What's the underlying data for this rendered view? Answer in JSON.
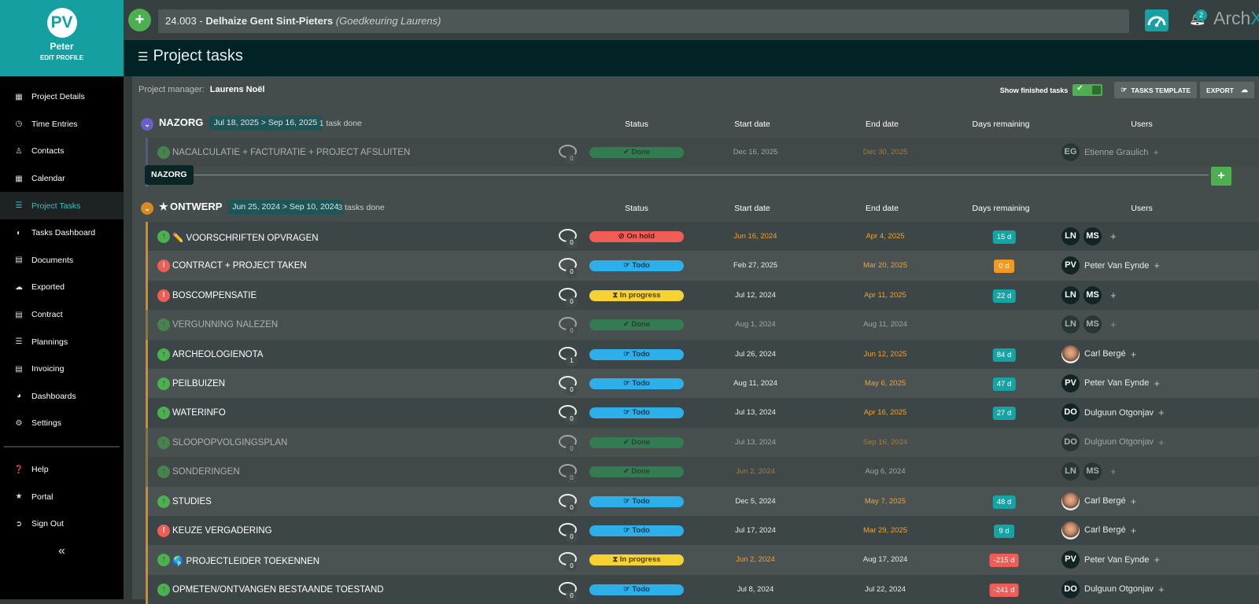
{
  "sidebar": {
    "avatar_initials": "PV",
    "name": "Peter",
    "edit_profile": "EDIT PROFILE",
    "items": [
      {
        "label": "Project Details",
        "icon": "map-icon"
      },
      {
        "label": "Time Entries",
        "icon": "clock-icon"
      },
      {
        "label": "Contacts",
        "icon": "user-icon"
      },
      {
        "label": "Calendar",
        "icon": "calendar-icon"
      },
      {
        "label": "Project Tasks",
        "icon": "list-icon",
        "active": true
      },
      {
        "label": "Tasks Dashboard",
        "icon": "dashboard-icon"
      },
      {
        "label": "Documents",
        "icon": "folder-icon"
      },
      {
        "label": "Exported",
        "icon": "cloud-icon"
      },
      {
        "label": "Contract",
        "icon": "book-icon"
      },
      {
        "label": "Plannings",
        "icon": "plannings-icon"
      },
      {
        "label": "Invoicing",
        "icon": "bank-icon"
      },
      {
        "label": "Dashboards",
        "icon": "pie-chart-icon"
      },
      {
        "label": "Settings",
        "icon": "gear-icon"
      }
    ],
    "bottom_items": [
      {
        "label": "Help",
        "icon": "help-icon"
      },
      {
        "label": "Portal",
        "icon": "sitemap-icon"
      },
      {
        "label": "Sign Out",
        "icon": "sign-out-icon"
      }
    ],
    "collapse": "«"
  },
  "topbar": {
    "add_label": "+",
    "project_code": "24.003",
    "project_sep": " - ",
    "project_name": "Delhaize Gent Sint-Pieters",
    "project_status": "(Goedkeuring Laurens)",
    "notification_count": "2",
    "brand": "Arch",
    "brand_accent": "X"
  },
  "page_title": "Project tasks",
  "project_manager": {
    "label": "Project manager:",
    "name": "Laurens Noël"
  },
  "toolbar": {
    "show_finished_label": "Show finished tasks",
    "show_finished": true,
    "template_label": "TASKS TEMPLATE",
    "export_label": "EXPORT"
  },
  "columns": {
    "status": "Status",
    "start": "Start date",
    "end": "End date",
    "days": "Days remaining",
    "users": "Users"
  },
  "groups": [
    {
      "name": "NAZORG",
      "starred": false,
      "range": "Jul 18, 2025 > Sep 16, 2025",
      "done_text": "1 task done",
      "color": "#6a5fc7",
      "tooltip": "NAZORG",
      "tasks": [
        {
          "name": "NACALCULATIE + FACTURATIE + PROJECT AFSLUITEN",
          "comments": "0",
          "status": "Done",
          "start": "Dec 16, 2025",
          "end": "Dec 30, 2025",
          "end_warn": true,
          "days": "",
          "users": [
            {
              "initials": "EG"
            }
          ],
          "user_name": "Etienne Graulich",
          "finished": true
        }
      ]
    },
    {
      "name": "ONTWERP",
      "starred": true,
      "range": "Jun 25, 2024 > Sep 10, 2024",
      "done_text": "3 tasks done",
      "color": "#d88a1e",
      "tasks": [
        {
          "name": "VOORSCHRIFTEN OPVRAGEN",
          "emoji": "✏️",
          "priority": "up",
          "comments": "0",
          "status": "On hold",
          "start": "Jun 16, 2024",
          "start_warn": true,
          "end": "Apr 4, 2025",
          "end_warn": true,
          "days": "15 d",
          "days_kind": "ok",
          "users": [
            {
              "initials": "LN"
            },
            {
              "initials": "MS"
            }
          ],
          "user_name": ""
        },
        {
          "name": "CONTRACT + PROJECT TAKEN",
          "priority": "high",
          "comments": "0",
          "status": "Todo",
          "start": "Feb 27, 2025",
          "end": "Mar 20, 2025",
          "end_warn": true,
          "days": "0 d",
          "days_kind": "warn",
          "users": [
            {
              "initials": "PV"
            }
          ],
          "user_name": "Peter Van Eynde"
        },
        {
          "name": "BOSCOMPENSATIE",
          "priority": "high",
          "comments": "0",
          "status": "In progress",
          "start": "Jul 12, 2024",
          "end": "Apr 11, 2025",
          "end_warn": true,
          "days": "22 d",
          "days_kind": "ok",
          "users": [
            {
              "initials": "LN"
            },
            {
              "initials": "MS"
            }
          ],
          "user_name": ""
        },
        {
          "name": "VERGUNNING NALEZEN",
          "priority": "up",
          "comments": "0",
          "status": "Done",
          "start": "Aug 1, 2024",
          "end": "Aug 11, 2024",
          "days": "",
          "users": [
            {
              "initials": "LN"
            },
            {
              "initials": "MS"
            }
          ],
          "user_name": "",
          "finished": true
        },
        {
          "name": "ARCHEOLOGIENOTA",
          "priority": "up",
          "comments": "1",
          "status": "Todo",
          "start": "Jul 26, 2024",
          "end": "Jun 12, 2025",
          "end_warn": true,
          "days": "84 d",
          "days_kind": "ok",
          "users": [
            {
              "initials": "",
              "photo": true
            }
          ],
          "user_name": "Carl Bergé"
        },
        {
          "name": "PEILBUIZEN",
          "priority": "up",
          "comments": "0",
          "status": "Todo",
          "start": "Aug 11, 2024",
          "end": "May 6, 2025",
          "end_warn": true,
          "days": "47 d",
          "days_kind": "ok",
          "users": [
            {
              "initials": "PV"
            }
          ],
          "user_name": "Peter Van Eynde"
        },
        {
          "name": "WATERINFO",
          "priority": "up",
          "comments": "0",
          "status": "Todo",
          "start": "Jul 13, 2024",
          "end": "Apr 16, 2025",
          "end_warn": true,
          "days": "27 d",
          "days_kind": "ok",
          "users": [
            {
              "initials": "DO"
            }
          ],
          "user_name": "Dulguun Otgonjav"
        },
        {
          "name": "SLOOPOPVOLGINGSPLAN",
          "priority": "up",
          "comments": "0",
          "status": "Done",
          "start": "Jul 13, 2024",
          "end": "Sep 16, 2024",
          "end_warn": true,
          "days": "",
          "users": [
            {
              "initials": "DO"
            }
          ],
          "user_name": "Dulguun Otgonjav",
          "finished": true
        },
        {
          "name": "SONDERINGEN",
          "priority": "up",
          "comments": "0",
          "status": "Done",
          "start": "Jun 2, 2024",
          "start_warn": true,
          "end": "Aug 6, 2024",
          "days": "",
          "users": [
            {
              "initials": "LN"
            },
            {
              "initials": "MS"
            }
          ],
          "user_name": "",
          "finished": true
        },
        {
          "name": "STUDIES",
          "priority": "up",
          "comments": "0",
          "status": "Todo",
          "start": "Dec 5, 2024",
          "end": "May 7, 2025",
          "end_warn": true,
          "days": "48 d",
          "days_kind": "ok",
          "users": [
            {
              "initials": "",
              "photo": true
            }
          ],
          "user_name": "Carl Bergé"
        },
        {
          "name": "KEUZE VERGADERING",
          "priority": "high",
          "comments": "0",
          "status": "Todo",
          "start": "Jul 17, 2024",
          "end": "Mar 29, 2025",
          "end_warn": true,
          "days": "9 d",
          "days_kind": "ok",
          "users": [
            {
              "initials": "",
              "photo": true
            }
          ],
          "user_name": "Carl Bergé"
        },
        {
          "name": "PROJECTLEIDER TOEKENNEN",
          "emoji": "🌎",
          "priority": "up",
          "comments": "0",
          "status": "In progress",
          "start": "Jun 2, 2024",
          "start_warn": true,
          "end": "Aug 17, 2024",
          "days": "-215 d",
          "days_kind": "over",
          "users": [
            {
              "initials": "PV"
            }
          ],
          "user_name": "Peter Van Eynde"
        },
        {
          "name": "OPMETEN/ONTVANGEN BESTAANDE TOESTAND",
          "priority": "up",
          "comments": "0",
          "status": "Todo",
          "start": "Jul 8, 2024",
          "end": "Jul 22, 2024",
          "days": "-241 d",
          "days_kind": "over",
          "users": [
            {
              "initials": "DO"
            }
          ],
          "user_name": "Dulguun Otgonjav"
        }
      ]
    }
  ]
}
